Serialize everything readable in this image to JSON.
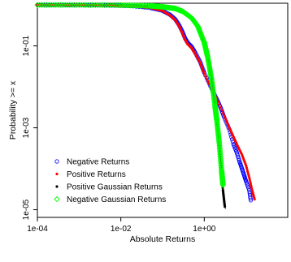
{
  "chart_data": {
    "type": "scatter",
    "title": "",
    "xlabel": "Absolute Returns",
    "ylabel": "Probability >= x",
    "x_scale": "log",
    "y_scale": "log",
    "xlim": [
      0.0001,
      100
    ],
    "ylim": [
      6.5e-06,
      1.1
    ],
    "x_ticks": [
      {
        "value": 0.0001,
        "label": "1e-04"
      },
      {
        "value": 0.01,
        "label": "1e-02"
      },
      {
        "value": 1,
        "label": "1e+00"
      }
    ],
    "y_ticks": [
      {
        "value": 1e-05,
        "label": "1e-05"
      },
      {
        "value": 0.001,
        "label": "1e-03"
      },
      {
        "value": 0.1,
        "label": "1e-01"
      }
    ],
    "grid": false,
    "legend_position": "bottom-left",
    "series": [
      {
        "name": "Negative Returns",
        "marker": "open-circle",
        "color": "#0000FF",
        "points": [
          [
            0.0001,
            1
          ],
          [
            0.0002,
            0.999
          ],
          [
            0.0005,
            0.998
          ],
          [
            0.001,
            0.996
          ],
          [
            0.002,
            0.992
          ],
          [
            0.005,
            0.98
          ],
          [
            0.01,
            0.96
          ],
          [
            0.02,
            0.93
          ],
          [
            0.05,
            0.85
          ],
          [
            0.1,
            0.72
          ],
          [
            0.15,
            0.58
          ],
          [
            0.2,
            0.45
          ],
          [
            0.25,
            0.32
          ],
          [
            0.3,
            0.22
          ],
          [
            0.35,
            0.15
          ],
          [
            0.4,
            0.12
          ],
          [
            0.5,
            0.095
          ],
          [
            0.6,
            0.07
          ],
          [
            0.8,
            0.04
          ],
          [
            1,
            0.022
          ],
          [
            1.5,
            0.009
          ],
          [
            2,
            0.005
          ],
          [
            2.5,
            0.003
          ],
          [
            3,
            0.0018
          ],
          [
            4,
            0.0009
          ],
          [
            5,
            0.0004
          ],
          [
            6,
            0.00025
          ],
          [
            7,
            0.00015
          ],
          [
            8,
            0.0001
          ],
          [
            9,
            7e-05
          ],
          [
            10,
            5e-05
          ],
          [
            12,
            3e-05
          ],
          [
            13,
            1.7e-05
          ]
        ]
      },
      {
        "name": "Positive Returns",
        "marker": "filled-dot",
        "color": "#FF0000",
        "points": [
          [
            0.0001,
            1
          ],
          [
            0.0002,
            0.999
          ],
          [
            0.0005,
            0.998
          ],
          [
            0.001,
            0.996
          ],
          [
            0.002,
            0.992
          ],
          [
            0.005,
            0.98
          ],
          [
            0.01,
            0.96
          ],
          [
            0.02,
            0.93
          ],
          [
            0.05,
            0.85
          ],
          [
            0.1,
            0.72
          ],
          [
            0.15,
            0.56
          ],
          [
            0.2,
            0.43
          ],
          [
            0.25,
            0.3
          ],
          [
            0.3,
            0.2
          ],
          [
            0.35,
            0.14
          ],
          [
            0.4,
            0.11
          ],
          [
            0.5,
            0.088
          ],
          [
            0.6,
            0.065
          ],
          [
            0.8,
            0.038
          ],
          [
            1,
            0.021
          ],
          [
            1.5,
            0.009
          ],
          [
            2,
            0.005
          ],
          [
            3,
            0.002
          ],
          [
            4,
            0.001
          ],
          [
            5,
            0.0006
          ],
          [
            6,
            0.0004
          ],
          [
            8,
            0.00022
          ],
          [
            10,
            0.00012
          ],
          [
            12,
            6e-05
          ],
          [
            14,
            3e-05
          ],
          [
            16,
            1.8e-05
          ]
        ]
      },
      {
        "name": "Positive Gaussian Returns",
        "marker": "filled-dot",
        "color": "#000000",
        "points": [
          [
            0.0001,
            1
          ],
          [
            0.001,
            0.997
          ],
          [
            0.01,
            0.985
          ],
          [
            0.05,
            0.95
          ],
          [
            0.1,
            0.9
          ],
          [
            0.2,
            0.82
          ],
          [
            0.3,
            0.7
          ],
          [
            0.5,
            0.48
          ],
          [
            0.7,
            0.3
          ],
          [
            1,
            0.12
          ],
          [
            1.3,
            0.04
          ],
          [
            1.6,
            0.011
          ],
          [
            1.9,
            0.0025
          ],
          [
            2.2,
            0.0006
          ],
          [
            2.5,
            0.00012
          ],
          [
            2.8,
            3e-05
          ],
          [
            3.1,
            1.2e-05
          ]
        ]
      },
      {
        "name": "Negative Gaussian Returns",
        "marker": "open-diamond",
        "color": "#00FF00",
        "points": [
          [
            0.0001,
            1
          ],
          [
            0.001,
            0.997
          ],
          [
            0.01,
            0.985
          ],
          [
            0.05,
            0.95
          ],
          [
            0.1,
            0.9
          ],
          [
            0.2,
            0.82
          ],
          [
            0.3,
            0.7
          ],
          [
            0.5,
            0.48
          ],
          [
            0.7,
            0.3
          ],
          [
            1,
            0.12
          ],
          [
            1.2,
            0.055
          ],
          [
            1.5,
            0.015
          ],
          [
            1.8,
            0.0035
          ],
          [
            2,
            0.0015
          ],
          [
            2.3,
            0.0004
          ],
          [
            2.6,
            9e-05
          ],
          [
            2.8,
            4e-05
          ]
        ]
      }
    ]
  }
}
